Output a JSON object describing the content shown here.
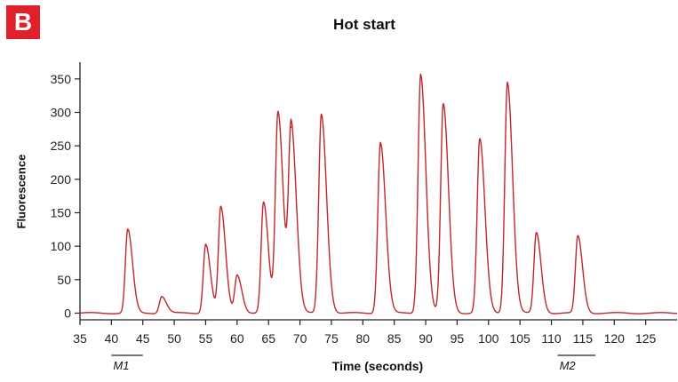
{
  "panel_label": "B",
  "markers": [
    {
      "label": "M1",
      "x_range": [
        40,
        45
      ]
    },
    {
      "label": "M2",
      "x_range": [
        111,
        117
      ]
    }
  ],
  "chart_data": {
    "type": "line",
    "title": "Hot start",
    "xlabel": "Time (seconds)",
    "ylabel": "Fluorescence",
    "xlim": [
      35,
      130
    ],
    "ylim": [
      -10,
      375
    ],
    "xticks": [
      35,
      40,
      45,
      50,
      55,
      60,
      65,
      70,
      75,
      80,
      85,
      90,
      95,
      100,
      105,
      110,
      115,
      120,
      125
    ],
    "yticks": [
      0,
      50,
      100,
      150,
      200,
      250,
      300,
      350
    ],
    "grid": false,
    "color": "#c0262d",
    "series": [
      {
        "baseline": 0,
        "peaks": [
          {
            "x": 42.6,
            "height": 125
          },
          {
            "x": 48.0,
            "height": 25
          },
          {
            "x": 55.0,
            "height": 103
          },
          {
            "x": 57.4,
            "height": 158
          },
          {
            "x": 60.0,
            "height": 57
          },
          {
            "x": 64.2,
            "height": 165
          },
          {
            "x": 66.5,
            "height": 300
          },
          {
            "x": 68.6,
            "height": 278
          },
          {
            "x": 73.4,
            "height": 297
          },
          {
            "x": 82.8,
            "height": 255
          },
          {
            "x": 89.2,
            "height": 357
          },
          {
            "x": 92.8,
            "height": 312
          },
          {
            "x": 98.6,
            "height": 260
          },
          {
            "x": 103.0,
            "height": 345
          },
          {
            "x": 107.6,
            "height": 120
          },
          {
            "x": 114.2,
            "height": 115
          }
        ]
      }
    ]
  }
}
